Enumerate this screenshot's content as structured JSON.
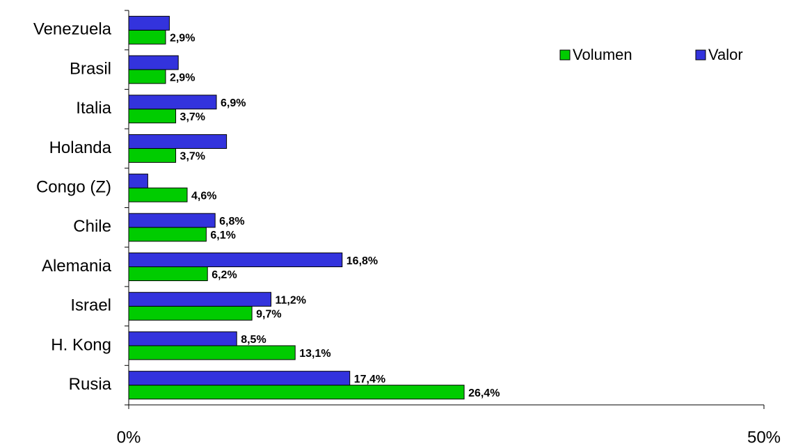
{
  "chart_data": {
    "type": "hbar",
    "categories": [
      "Venezuela",
      "Brasil",
      "Italia",
      "Holanda",
      "Congo (Z)",
      "Chile",
      "Alemania",
      "Israel",
      "H. Kong",
      "Rusia"
    ],
    "series": [
      {
        "name": "Volumen",
        "color": "#00cc00",
        "values": [
          2.9,
          2.9,
          3.7,
          3.7,
          4.6,
          6.1,
          6.2,
          9.7,
          13.1,
          26.4
        ],
        "value_labels": [
          "2,9%",
          "2,9%",
          "3,7%",
          "3,7%",
          "4,6%",
          "6,1%",
          "6,2%",
          "9,7%",
          "13,1%",
          "26,4%"
        ]
      },
      {
        "name": "Valor",
        "color": "#3333dd",
        "values": [
          3.2,
          3.9,
          6.9,
          7.7,
          1.5,
          6.8,
          16.8,
          11.2,
          8.5,
          17.4
        ],
        "value_labels": [
          null,
          null,
          "6,9%",
          null,
          null,
          "6,8%",
          "16,8%",
          "11,2%",
          "8,5%",
          "17,4%"
        ]
      }
    ],
    "xlim": [
      0,
      50
    ],
    "xticks": [
      {
        "value": 0,
        "label": "0%"
      },
      {
        "value": 50,
        "label": "50%"
      }
    ],
    "legend": "top-right"
  }
}
